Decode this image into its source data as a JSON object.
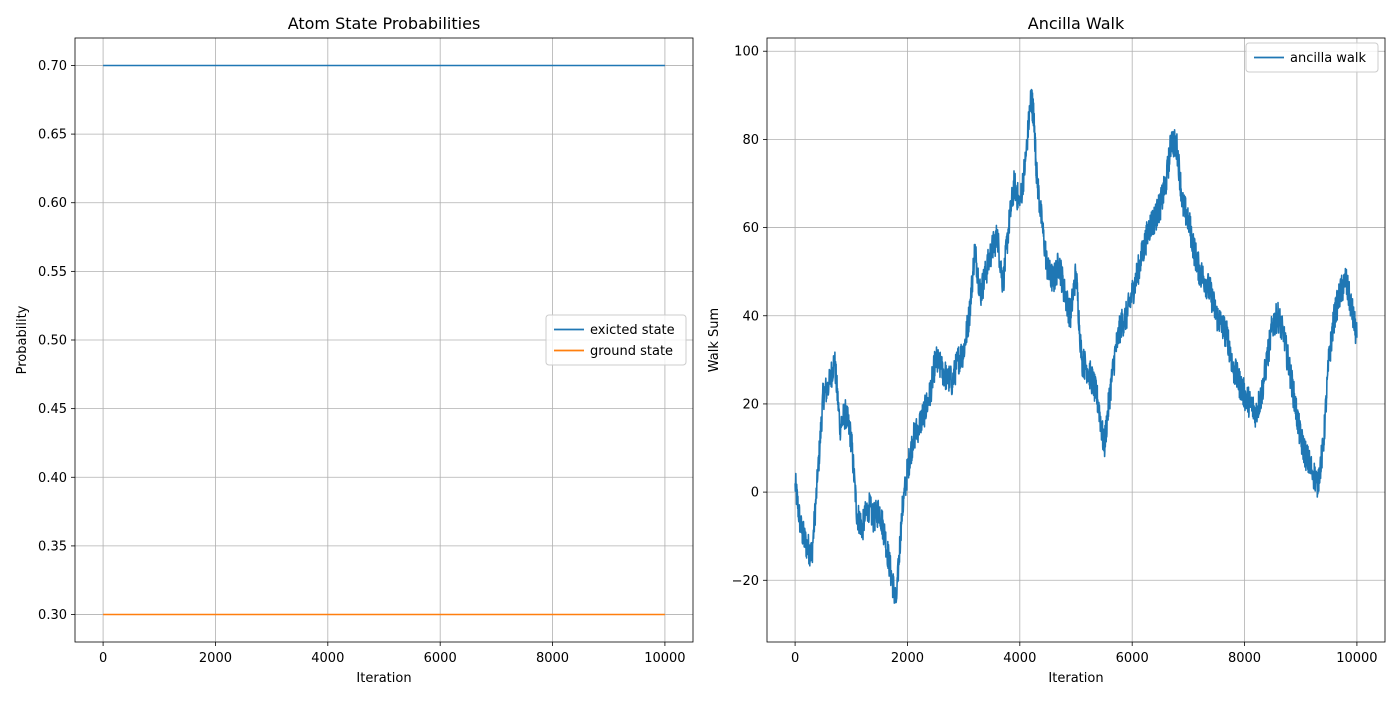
{
  "chart_data": [
    {
      "type": "line",
      "title": "Atom State Probabilities",
      "xlabel": "Iteration",
      "ylabel": "Probability",
      "xlim": [
        -500,
        10500
      ],
      "ylim": [
        0.28,
        0.72
      ],
      "xticks": [
        0,
        2000,
        4000,
        6000,
        8000,
        10000
      ],
      "yticks": [
        0.3,
        0.35,
        0.4,
        0.45,
        0.5,
        0.55,
        0.6,
        0.65,
        0.7
      ],
      "xtick_labels": [
        "0",
        "2000",
        "4000",
        "6000",
        "8000",
        "10000"
      ],
      "ytick_labels": [
        "0.30",
        "0.35",
        "0.40",
        "0.45",
        "0.50",
        "0.55",
        "0.60",
        "0.65",
        "0.70"
      ],
      "grid": true,
      "legend_position": "center-right",
      "series": [
        {
          "name": "exicted state",
          "color": "#1f77b4",
          "x": [
            0,
            10000
          ],
          "values": [
            0.7,
            0.7
          ]
        },
        {
          "name": "ground state",
          "color": "#ff7f0e",
          "x": [
            0,
            10000
          ],
          "values": [
            0.3,
            0.3
          ]
        }
      ]
    },
    {
      "type": "line",
      "title": "Ancilla Walk",
      "xlabel": "Iteration",
      "ylabel": "Walk Sum",
      "xlim": [
        -500,
        10500
      ],
      "ylim": [
        -34,
        103
      ],
      "xticks": [
        0,
        2000,
        4000,
        6000,
        8000,
        10000
      ],
      "yticks": [
        -20,
        0,
        20,
        40,
        60,
        80,
        100
      ],
      "xtick_labels": [
        "0",
        "2000",
        "4000",
        "6000",
        "8000",
        "10000"
      ],
      "ytick_labels": [
        "−20",
        "0",
        "20",
        "40",
        "60",
        "80",
        "100"
      ],
      "grid": true,
      "legend_position": "top-right",
      "series": [
        {
          "name": "ancilla walk",
          "color": "#1f77b4",
          "x": [
            0,
            100,
            200,
            300,
            400,
            500,
            600,
            700,
            800,
            900,
            1000,
            1100,
            1200,
            1300,
            1400,
            1500,
            1600,
            1700,
            1800,
            1900,
            2000,
            2100,
            2200,
            2300,
            2400,
            2500,
            2600,
            2700,
            2800,
            2900,
            3000,
            3100,
            3200,
            3300,
            3400,
            3500,
            3600,
            3700,
            3800,
            3900,
            4000,
            4100,
            4200,
            4250,
            4300,
            4400,
            4500,
            4600,
            4700,
            4800,
            4900,
            5000,
            5100,
            5200,
            5300,
            5400,
            5500,
            5600,
            5700,
            5800,
            5900,
            6000,
            6100,
            6200,
            6300,
            6400,
            6500,
            6600,
            6700,
            6800,
            6900,
            7000,
            7100,
            7200,
            7300,
            7400,
            7500,
            7600,
            7700,
            7800,
            7900,
            8000,
            8100,
            8200,
            8300,
            8400,
            8500,
            8600,
            8700,
            8800,
            8900,
            9000,
            9100,
            9200,
            9300,
            9400,
            9500,
            9600,
            9700,
            9800,
            9900,
            10000
          ],
          "values": [
            2,
            -8,
            -12,
            -14,
            3,
            22,
            24,
            30,
            15,
            18,
            12,
            -5,
            -8,
            -3,
            -6,
            -4,
            -10,
            -18,
            -25,
            -5,
            5,
            12,
            15,
            18,
            22,
            30,
            28,
            26,
            25,
            30,
            32,
            40,
            55,
            45,
            50,
            55,
            58,
            47,
            60,
            70,
            65,
            75,
            90,
            85,
            72,
            60,
            50,
            48,
            52,
            45,
            40,
            50,
            30,
            28,
            25,
            20,
            10,
            22,
            32,
            38,
            40,
            45,
            50,
            55,
            60,
            62,
            65,
            70,
            80,
            78,
            65,
            62,
            55,
            50,
            48,
            45,
            40,
            38,
            35,
            28,
            25,
            22,
            20,
            18,
            22,
            30,
            38,
            40,
            35,
            28,
            20,
            12,
            8,
            5,
            2,
            10,
            30,
            40,
            45,
            48,
            42,
            35
          ]
        }
      ]
    }
  ]
}
